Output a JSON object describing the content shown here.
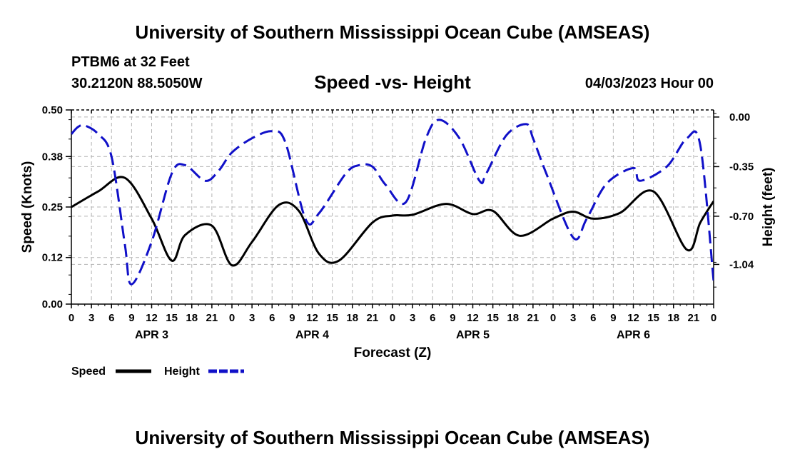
{
  "header": {
    "title": "University of Southern Mississippi Ocean Cube (AMSEAS)",
    "station": "PTBM6 at 32 Feet",
    "coords": "30.2120N  88.5050W",
    "chart_title": "Speed -vs- Height",
    "run_date": "04/03/2023 Hour 00"
  },
  "footer": {
    "title": "University of Southern Mississippi Ocean Cube (AMSEAS)"
  },
  "legend": {
    "speed_label": "Speed",
    "height_label": "Height"
  },
  "colors": {
    "speed": "#000000",
    "height": "#1010c8",
    "grid": "#b4b4b4"
  },
  "chart_data": {
    "type": "line",
    "title": "Speed -vs- Height",
    "xlabel": "Forecast (Z)",
    "ylabel": "Speed (Knots)",
    "y2label": "Height (feet)",
    "grid": true,
    "legend_position": "bottom-left",
    "xlim": [
      0,
      96
    ],
    "ylim": [
      0,
      0.5
    ],
    "y2lim": [
      -1.32,
      0.05
    ],
    "yticks": [
      0.0,
      0.12,
      0.25,
      0.38,
      0.5
    ],
    "yticklabels": [
      "0.00",
      "0.12",
      "0.25",
      "0.38",
      "0.50"
    ],
    "y2ticks": [
      0.0,
      -0.35,
      -0.7,
      -1.04
    ],
    "y2ticklabels": [
      "0.00",
      "-0.35",
      "-0.70",
      "-1.04"
    ],
    "xticks": [
      0,
      3,
      6,
      9,
      12,
      15,
      18,
      21,
      24,
      27,
      30,
      33,
      36,
      39,
      42,
      45,
      48,
      51,
      54,
      57,
      60,
      63,
      66,
      69,
      72,
      75,
      78,
      81,
      84,
      87,
      90,
      93,
      96
    ],
    "xticklabels": [
      "0",
      "3",
      "6",
      "9",
      "12",
      "15",
      "18",
      "21",
      "0",
      "3",
      "6",
      "9",
      "12",
      "15",
      "18",
      "21",
      "0",
      "3",
      "6",
      "9",
      "12",
      "15",
      "18",
      "21",
      "0",
      "3",
      "6",
      "9",
      "12",
      "15",
      "18",
      "21",
      "0"
    ],
    "day_labels": [
      {
        "hour": 12,
        "label": "APR 3"
      },
      {
        "hour": 36,
        "label": "APR 4"
      },
      {
        "hour": 60,
        "label": "APR 5"
      },
      {
        "hour": 84,
        "label": "APR 6"
      }
    ],
    "series": [
      {
        "name": "Speed",
        "axis": "left",
        "style": "solid",
        "x": [
          0,
          4,
          8,
          12,
          15,
          17,
          21,
          24,
          27,
          31,
          34,
          37,
          40,
          45,
          48,
          51,
          56,
          60,
          63,
          67,
          72,
          75,
          78,
          82,
          87,
          92,
          94,
          96
        ],
        "values": [
          0.25,
          0.29,
          0.325,
          0.22,
          0.112,
          0.178,
          0.202,
          0.1,
          0.16,
          0.255,
          0.24,
          0.13,
          0.112,
          0.21,
          0.228,
          0.23,
          0.258,
          0.232,
          0.24,
          0.176,
          0.22,
          0.238,
          0.22,
          0.235,
          0.29,
          0.14,
          0.21,
          0.265
        ]
      },
      {
        "name": "Height",
        "axis": "right",
        "style": "dashed",
        "x": [
          0,
          1,
          2,
          4,
          6,
          8,
          9,
          12,
          15,
          17,
          20,
          22,
          24,
          27,
          30,
          32,
          35,
          37,
          41,
          43,
          45,
          47,
          50,
          53,
          55,
          58,
          61,
          62,
          65,
          68,
          69,
          71,
          75,
          77,
          80,
          84,
          85,
          89,
          92,
          94,
          96
        ],
        "values": [
          -0.12,
          -0.07,
          -0.06,
          -0.12,
          -0.28,
          -0.9,
          -1.18,
          -0.88,
          -0.4,
          -0.34,
          -0.45,
          -0.38,
          -0.25,
          -0.15,
          -0.1,
          -0.18,
          -0.72,
          -0.68,
          -0.4,
          -0.34,
          -0.35,
          -0.48,
          -0.6,
          -0.15,
          -0.02,
          -0.15,
          -0.45,
          -0.4,
          -0.13,
          -0.05,
          -0.15,
          -0.4,
          -0.85,
          -0.72,
          -0.47,
          -0.36,
          -0.45,
          -0.35,
          -0.15,
          -0.2,
          -1.16
        ]
      }
    ]
  }
}
